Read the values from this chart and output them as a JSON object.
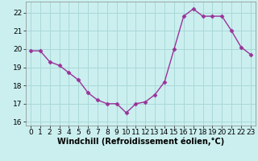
{
  "x": [
    0,
    1,
    2,
    3,
    4,
    5,
    6,
    7,
    8,
    9,
    10,
    11,
    12,
    13,
    14,
    15,
    16,
    17,
    18,
    19,
    20,
    21,
    22,
    23
  ],
  "y": [
    19.9,
    19.9,
    19.3,
    19.1,
    18.7,
    18.3,
    17.6,
    17.2,
    17.0,
    17.0,
    16.5,
    17.0,
    17.1,
    17.5,
    18.2,
    20.0,
    21.8,
    22.2,
    21.8,
    21.8,
    21.8,
    21.0,
    20.1,
    19.7
  ],
  "color": "#993399",
  "bg_color": "#cbefef",
  "grid_color": "#aad8d8",
  "xlabel": "Windchill (Refroidissement éolien,°C)",
  "ylim": [
    15.8,
    22.6
  ],
  "xlim": [
    -0.5,
    23.5
  ],
  "yticks": [
    16,
    17,
    18,
    19,
    20,
    21,
    22
  ],
  "xticks": [
    0,
    1,
    2,
    3,
    4,
    5,
    6,
    7,
    8,
    9,
    10,
    11,
    12,
    13,
    14,
    15,
    16,
    17,
    18,
    19,
    20,
    21,
    22,
    23
  ],
  "marker": "D",
  "markersize": 2.5,
  "linewidth": 1.0,
  "xlabel_fontsize": 7,
  "tick_fontsize": 6.5
}
